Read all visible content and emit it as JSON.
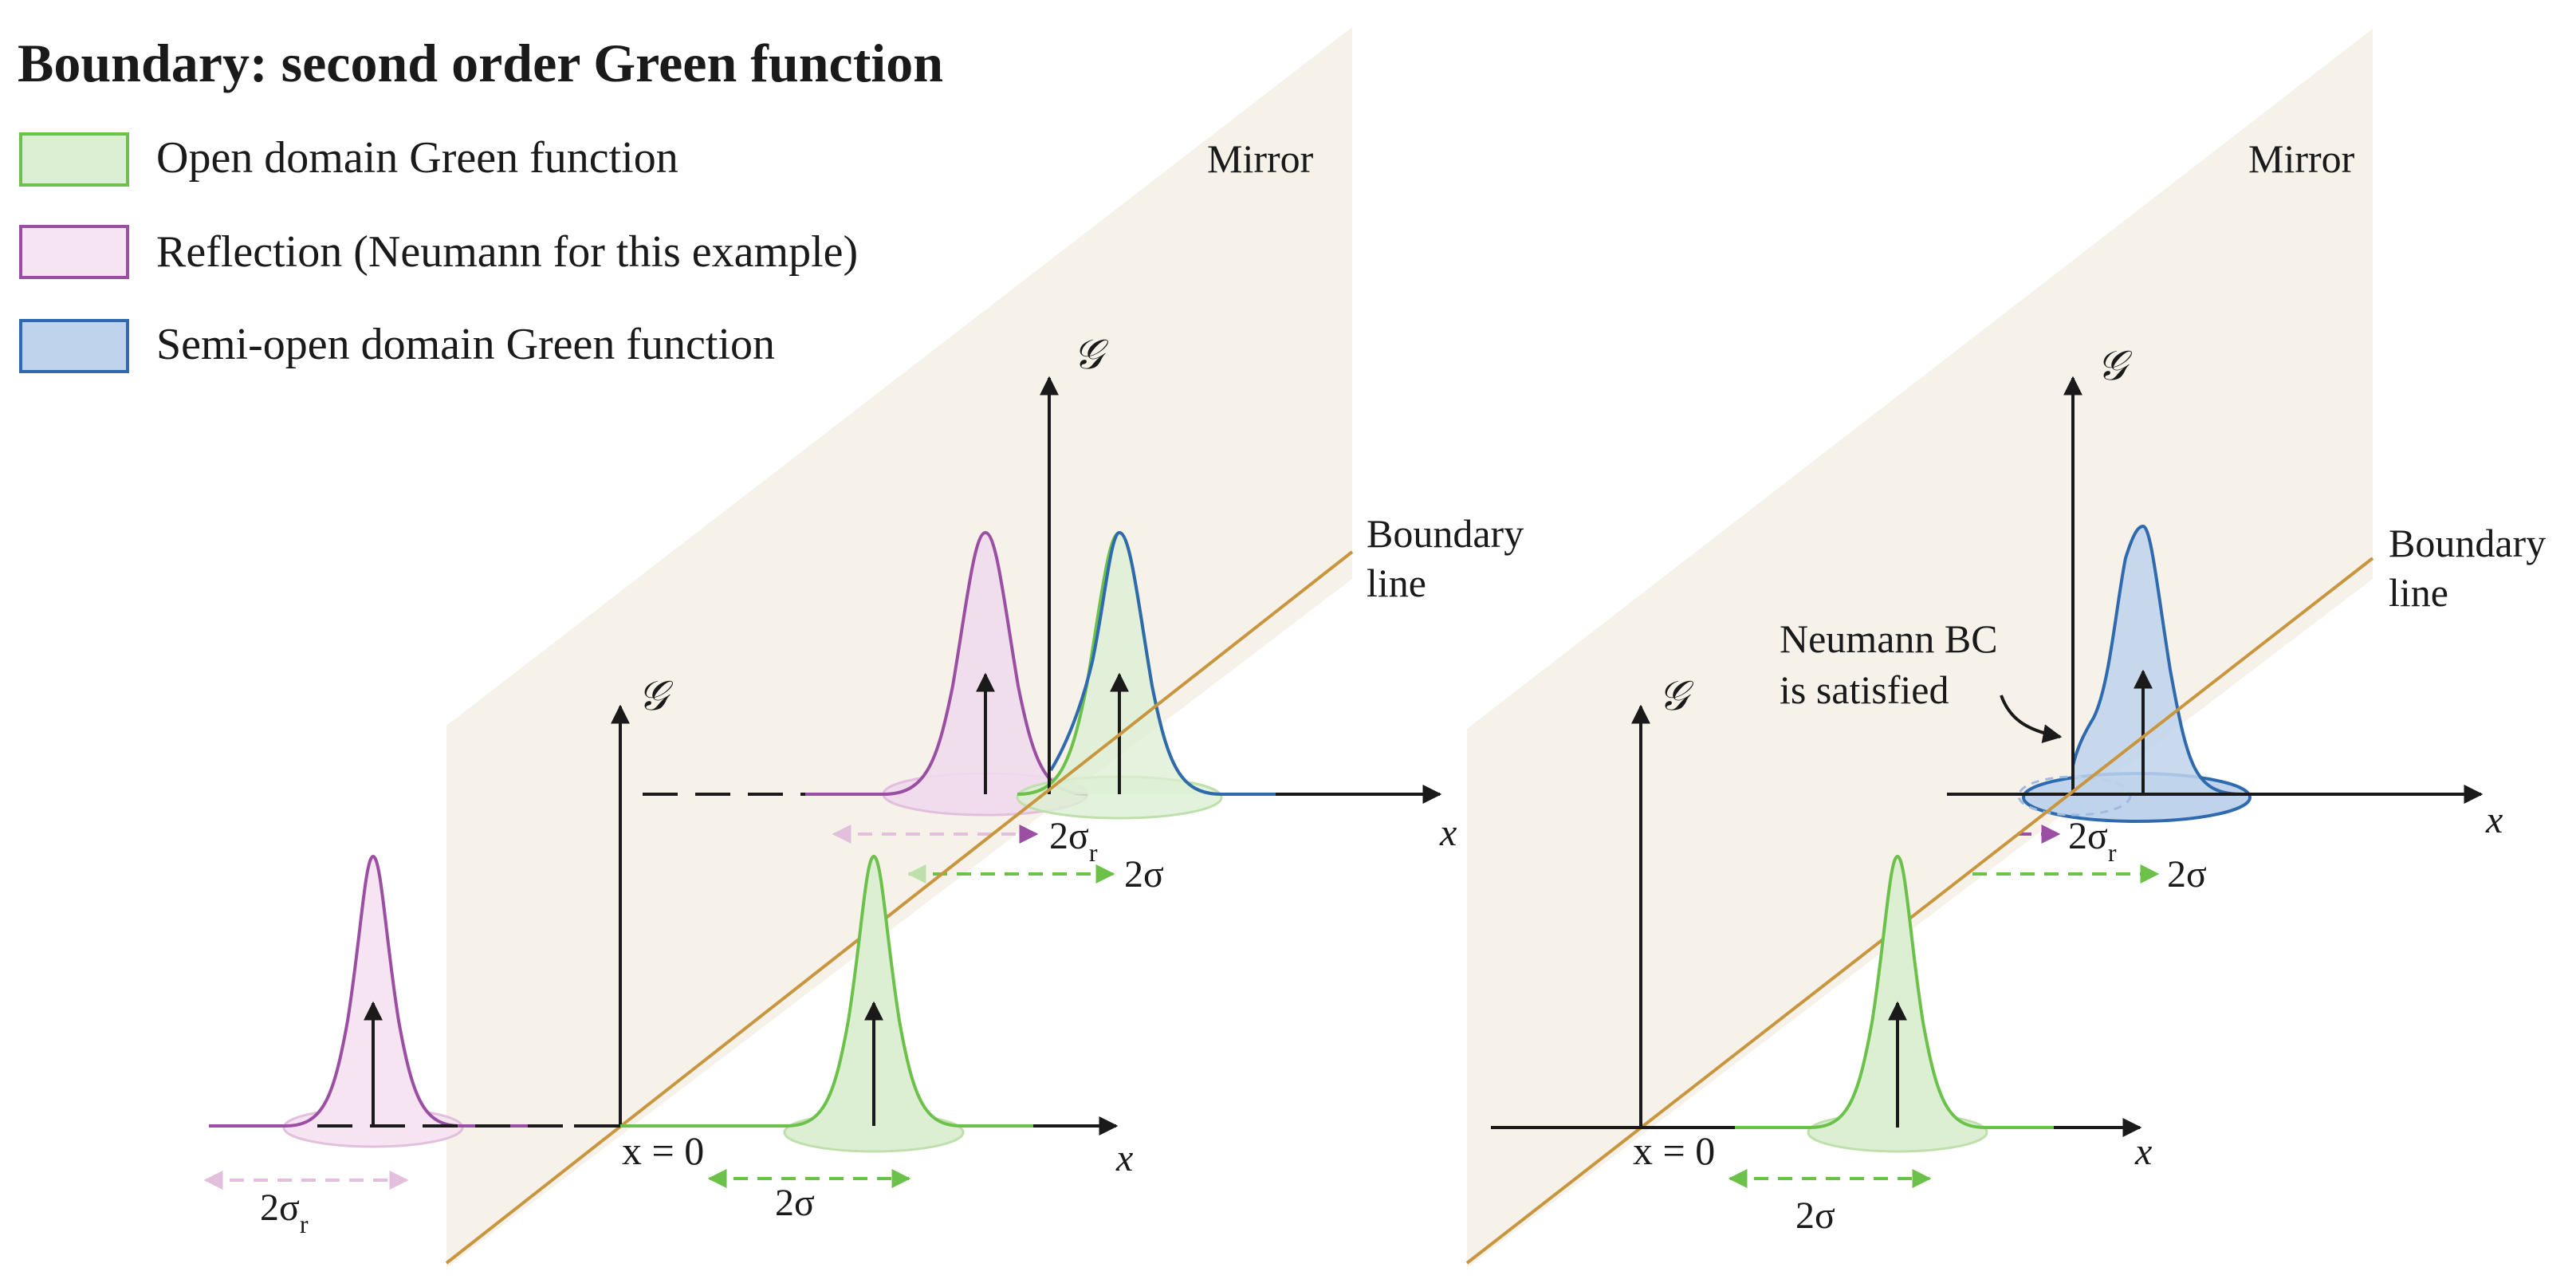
{
  "title": "Boundary: second order Green function",
  "legend": [
    {
      "label": "Open domain Green function",
      "fill": "#dcefd3",
      "stroke": "#6cc14a"
    },
    {
      "label": "Reflection (Neumann for this example)",
      "fill": "#f6e4f2",
      "stroke": "#9b4fa3"
    },
    {
      "label": "Semi-open domain Green function",
      "fill": "#bfd3ec",
      "stroke": "#2f6aae"
    }
  ],
  "colors": {
    "plane": "#f6f1e9",
    "boundary": "#c8963e",
    "axis": "#1a1a1a",
    "open_fill": "#dcefd3",
    "open_stroke": "#6cc14a",
    "refl_fill": "#f6e4f2",
    "refl_stroke": "#9b4fa3",
    "semi_fill": "#bfd3ec",
    "semi_stroke": "#2f6aae"
  },
  "left_panel": {
    "mirror_label": "Mirror",
    "boundary_label": [
      "Boundary",
      "line"
    ],
    "g_symbol": "𝒢",
    "x_symbol": "x",
    "origin_label": "x = 0",
    "sigma_open": "2σ",
    "sigma_refl_main": "2σ",
    "sigma_refl_sub": "r"
  },
  "right_panel": {
    "mirror_label": "Mirror",
    "boundary_label": [
      "Boundary",
      "line"
    ],
    "g_symbol": "𝒢",
    "x_symbol": "x",
    "origin_label": "x = 0",
    "sigma_open": "2σ",
    "sigma_refl_main": "2σ",
    "sigma_refl_sub": "r",
    "annotation": [
      "Neumann BC",
      "is satisfied"
    ]
  }
}
